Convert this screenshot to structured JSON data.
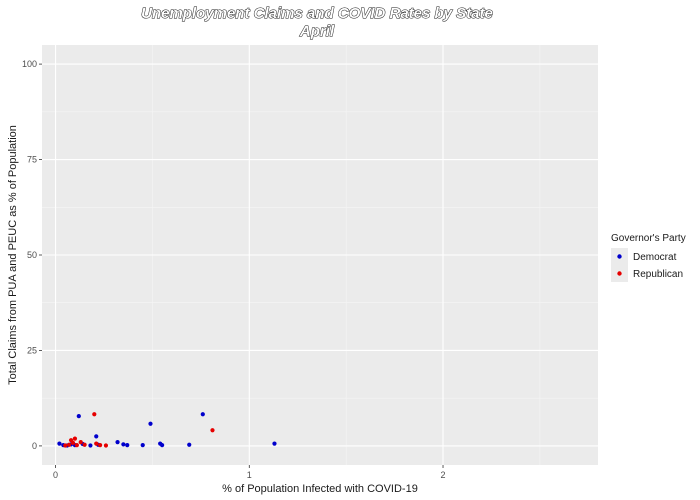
{
  "chart_data": {
    "type": "scatter",
    "title": "Unemployment Claims and COVID Rates by State",
    "subtitle": "April",
    "xlabel": "% of Population Infected with COVID-19",
    "ylabel": "Total Claims from PUA and PEUC as % of Population",
    "xlim": [
      -0.07,
      2.8
    ],
    "ylim": [
      -5,
      105
    ],
    "x_ticks": [
      0,
      1,
      2
    ],
    "x_tick_labels": [
      "0",
      "1",
      "2"
    ],
    "y_ticks": [
      0,
      25,
      50,
      75,
      100
    ],
    "y_tick_labels": [
      "0",
      "25",
      "50",
      "75",
      "100"
    ],
    "grid": true,
    "legend": {
      "title": "Governor's Party",
      "position": "right",
      "entries": [
        {
          "label": "Democrat",
          "color": "#0000cc"
        },
        {
          "label": "Republican",
          "color": "#e60000"
        }
      ]
    },
    "series": [
      {
        "name": "Democrat",
        "color": "#0000cc",
        "points": [
          {
            "x": 0.02,
            "y": 0.6
          },
          {
            "x": 0.04,
            "y": 0.2
          },
          {
            "x": 0.06,
            "y": 0.1
          },
          {
            "x": 0.08,
            "y": 0.4
          },
          {
            "x": 0.1,
            "y": 0.2
          },
          {
            "x": 0.12,
            "y": 7.8
          },
          {
            "x": 0.14,
            "y": 0.5
          },
          {
            "x": 0.18,
            "y": 0.1
          },
          {
            "x": 0.21,
            "y": 2.5
          },
          {
            "x": 0.22,
            "y": 0.3
          },
          {
            "x": 0.32,
            "y": 1.0
          },
          {
            "x": 0.35,
            "y": 0.4
          },
          {
            "x": 0.37,
            "y": 0.2
          },
          {
            "x": 0.45,
            "y": 0.2
          },
          {
            "x": 0.49,
            "y": 5.8
          },
          {
            "x": 0.54,
            "y": 0.6
          },
          {
            "x": 0.55,
            "y": 0.2
          },
          {
            "x": 0.69,
            "y": 0.3
          },
          {
            "x": 0.76,
            "y": 8.3
          },
          {
            "x": 1.13,
            "y": 0.6
          }
        ]
      },
      {
        "name": "Republican",
        "color": "#e60000",
        "points": [
          {
            "x": 0.05,
            "y": 0.1
          },
          {
            "x": 0.07,
            "y": 0.3
          },
          {
            "x": 0.08,
            "y": 1.5
          },
          {
            "x": 0.09,
            "y": 0.8
          },
          {
            "x": 0.1,
            "y": 1.9
          },
          {
            "x": 0.11,
            "y": 0.2
          },
          {
            "x": 0.13,
            "y": 1.0
          },
          {
            "x": 0.15,
            "y": 0.3
          },
          {
            "x": 0.2,
            "y": 8.3
          },
          {
            "x": 0.21,
            "y": 0.6
          },
          {
            "x": 0.23,
            "y": 0.2
          },
          {
            "x": 0.26,
            "y": 0.1
          },
          {
            "x": 0.81,
            "y": 4.1
          }
        ]
      }
    ]
  }
}
